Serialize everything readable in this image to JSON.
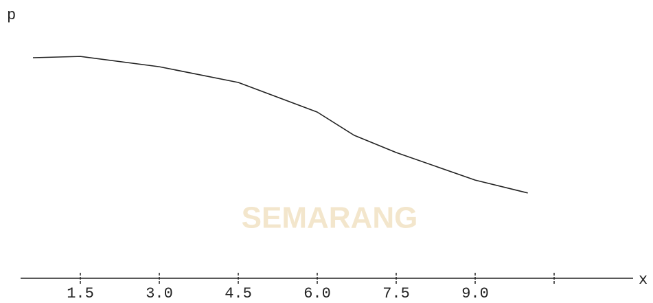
{
  "chart_data": {
    "type": "line",
    "watermark": "SEMARANG",
    "y_label": "p",
    "x_label": "x",
    "x": [
      0.6,
      1.5,
      3.0,
      4.5,
      6.0,
      6.7,
      7.5,
      9.0,
      10.0
    ],
    "values": [
      0.856,
      0.861,
      0.821,
      0.76,
      0.645,
      0.555,
      0.488,
      0.381,
      0.331
    ],
    "color": "#222222",
    "xlim": [
      0,
      12
    ],
    "ylim": [
      0,
      1
    ],
    "xticks": [
      {
        "value": 1.5,
        "label": "1.5"
      },
      {
        "value": 3,
        "label": "3.0"
      },
      {
        "value": 4.5,
        "label": "4.5"
      },
      {
        "value": 6,
        "label": "6.0"
      },
      {
        "value": 7.5,
        "label": "7.5"
      },
      {
        "value": 9,
        "label": "9.0"
      },
      {
        "value": 10.5,
        "label": null
      }
    ],
    "grid": false
  }
}
